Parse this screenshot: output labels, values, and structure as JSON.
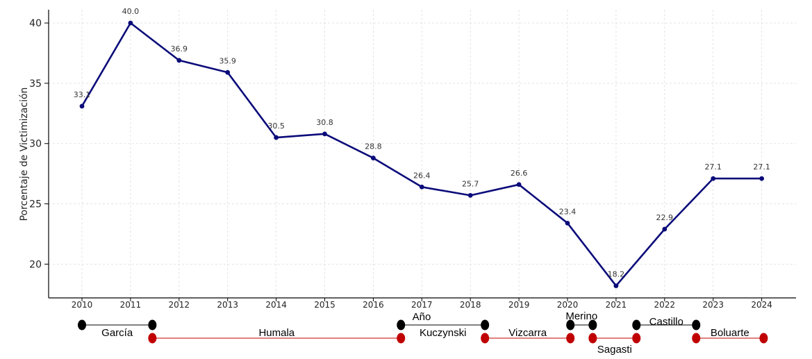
{
  "chart_data": {
    "type": "line",
    "title": "",
    "xlabel": "Año",
    "ylabel": "Porcentaje de Victimización",
    "x": [
      "2010",
      "2011",
      "2012",
      "2013",
      "2014",
      "2015",
      "2016",
      "2017",
      "2018",
      "2019",
      "2020",
      "2021",
      "2022",
      "2023",
      "2024"
    ],
    "series": [
      {
        "values": [
          33.1,
          40.0,
          36.9,
          35.9,
          30.5,
          30.8,
          28.8,
          26.4,
          25.7,
          26.6,
          23.4,
          18.2,
          22.9,
          27.1,
          27.1
        ]
      }
    ],
    "data_labels": [
      "33.1",
      "40.0",
      "36.9",
      "35.9",
      "30.5",
      "30.8",
      "28.8",
      "26.4",
      "25.7",
      "26.6",
      "23.4",
      "18.2",
      "22.9",
      "27.1",
      "27.1"
    ],
    "ylim": [
      17.2,
      41.1
    ],
    "yticks": [
      20,
      25,
      30,
      35,
      40
    ],
    "grid": true,
    "line_color": "#0b0b7a",
    "presidential_terms": [
      {
        "name": "García",
        "start": 2010.0,
        "end": 2011.45,
        "row": "black"
      },
      {
        "name": "Humala",
        "start": 2011.45,
        "end": 2016.57,
        "row": "red"
      },
      {
        "name": "Kuczynski",
        "start": 2016.57,
        "end": 2018.3,
        "row": "black"
      },
      {
        "name": "Vizcarra",
        "start": 2018.3,
        "end": 2020.06,
        "row": "red"
      },
      {
        "name": "Merino",
        "start": 2020.06,
        "end": 2020.52,
        "row": "black"
      },
      {
        "name": "Sagasti",
        "start": 2020.52,
        "end": 2021.42,
        "row": "red"
      },
      {
        "name": "Castillo",
        "start": 2021.42,
        "end": 2022.65,
        "row": "black"
      },
      {
        "name": "Boluarte",
        "start": 2022.65,
        "end": 2024.04,
        "row": "red"
      }
    ],
    "term_colors": {
      "black": "#000000",
      "red": "#c00000"
    }
  }
}
